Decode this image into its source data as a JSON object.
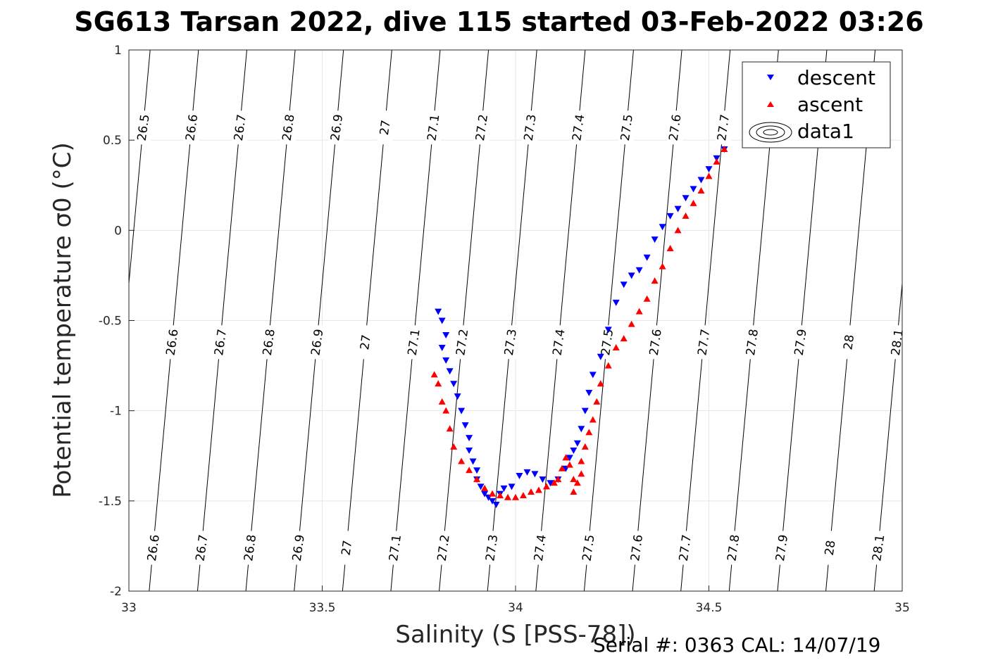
{
  "title": "SG613 Tarsan 2022, dive 115 started 03-Feb-2022 03:26",
  "footer": "Serial #: 0363  CAL: 14/07/19",
  "chart_data": {
    "type": "scatter",
    "title": "SG613 Tarsan 2022, dive 115 started 03-Feb-2022 03:26",
    "xlabel": "Salinity (S [PSS-78])",
    "ylabel": "Potential temperature σ0 (°C)",
    "xlim": [
      33,
      35
    ],
    "ylim": [
      -2,
      1
    ],
    "x_ticks": [
      33,
      33.5,
      34,
      34.5,
      35
    ],
    "y_ticks": [
      -2,
      -1.5,
      -1,
      -0.5,
      0,
      0.5,
      1
    ],
    "grid": true,
    "legend_position": "top-right",
    "legend": [
      "descent",
      "ascent",
      "data1"
    ],
    "density_contour_levels": [
      26.5,
      26.6,
      26.7,
      26.8,
      26.9,
      27,
      27.1,
      27.2,
      27.3,
      27.4,
      27.5,
      27.6,
      27.7,
      27.8,
      27.9,
      28,
      28.1
    ],
    "contour_labels_top": [
      "26.5",
      "26.6",
      "26.7",
      "26.8",
      "26.9",
      "27",
      "27.1",
      "27.2",
      "27.3",
      "27.4",
      "27.5",
      "27.6",
      "27.7"
    ],
    "contour_labels_middle": [
      "26.6",
      "26.7",
      "26.8",
      "26.9",
      "27",
      "27.1",
      "27.2",
      "27.3",
      "27.4",
      "27.5",
      "27.6",
      "27.7",
      "27.8",
      "27.9",
      "28",
      "28.1"
    ],
    "contour_labels_bottom": [
      "26.6",
      "26.7",
      "26.8",
      "26.9",
      "27",
      "27.1",
      "27.2",
      "27.3",
      "27.4",
      "27.5",
      "27.6",
      "27.7",
      "27.8",
      "27.9",
      "28",
      "28.1"
    ],
    "series": [
      {
        "name": "descent",
        "marker": "triangle-down",
        "color": "#0000ff",
        "x": [
          33.8,
          33.81,
          33.82,
          33.81,
          33.82,
          33.83,
          33.84,
          33.85,
          33.86,
          33.87,
          33.88,
          33.88,
          33.89,
          33.9,
          33.9,
          33.91,
          33.92,
          33.93,
          33.94,
          33.95,
          33.96,
          33.97,
          33.99,
          34.01,
          34.03,
          34.05,
          34.07,
          34.09,
          34.11,
          34.13,
          34.14,
          34.15,
          34.16,
          34.17,
          34.18,
          34.19,
          34.2,
          34.22,
          34.24,
          34.26,
          34.28,
          34.3,
          34.32,
          34.34,
          34.36,
          34.38,
          34.4,
          34.42,
          34.44,
          34.46,
          34.48,
          34.5,
          34.52,
          34.54
        ],
        "y": [
          -0.45,
          -0.5,
          -0.58,
          -0.65,
          -0.72,
          -0.78,
          -0.85,
          -0.92,
          -1.0,
          -1.08,
          -1.15,
          -1.22,
          -1.28,
          -1.33,
          -1.38,
          -1.42,
          -1.46,
          -1.48,
          -1.5,
          -1.52,
          -1.46,
          -1.43,
          -1.42,
          -1.36,
          -1.34,
          -1.35,
          -1.38,
          -1.4,
          -1.38,
          -1.32,
          -1.26,
          -1.22,
          -1.18,
          -1.1,
          -1.0,
          -0.9,
          -0.8,
          -0.7,
          -0.55,
          -0.4,
          -0.3,
          -0.25,
          -0.22,
          -0.15,
          -0.05,
          0.02,
          0.08,
          0.12,
          0.18,
          0.23,
          0.28,
          0.34,
          0.4,
          0.45
        ]
      },
      {
        "name": "ascent",
        "marker": "triangle-up",
        "color": "#ff0000",
        "x": [
          34.54,
          34.52,
          34.5,
          34.48,
          34.46,
          34.44,
          34.42,
          34.4,
          34.38,
          34.36,
          34.34,
          34.32,
          34.3,
          34.28,
          34.26,
          34.24,
          34.22,
          34.21,
          34.2,
          34.19,
          34.18,
          34.17,
          34.17,
          34.16,
          34.15,
          34.15,
          34.14,
          34.13,
          34.12,
          34.11,
          34.1,
          34.08,
          34.06,
          34.04,
          34.02,
          34.0,
          33.98,
          33.96,
          33.94,
          33.92,
          33.9,
          33.88,
          33.86,
          33.84,
          33.83,
          33.82,
          33.81,
          33.8,
          33.79
        ],
        "y": [
          0.45,
          0.38,
          0.3,
          0.22,
          0.15,
          0.08,
          0.0,
          -0.1,
          -0.2,
          -0.28,
          -0.38,
          -0.45,
          -0.52,
          -0.6,
          -0.65,
          -0.75,
          -0.85,
          -0.95,
          -1.05,
          -1.12,
          -1.2,
          -1.28,
          -1.35,
          -1.4,
          -1.45,
          -1.38,
          -1.3,
          -1.26,
          -1.32,
          -1.38,
          -1.4,
          -1.42,
          -1.44,
          -1.45,
          -1.47,
          -1.48,
          -1.48,
          -1.47,
          -1.46,
          -1.43,
          -1.38,
          -1.33,
          -1.28,
          -1.2,
          -1.1,
          -1.0,
          -0.95,
          -0.85,
          -0.8
        ]
      }
    ]
  }
}
